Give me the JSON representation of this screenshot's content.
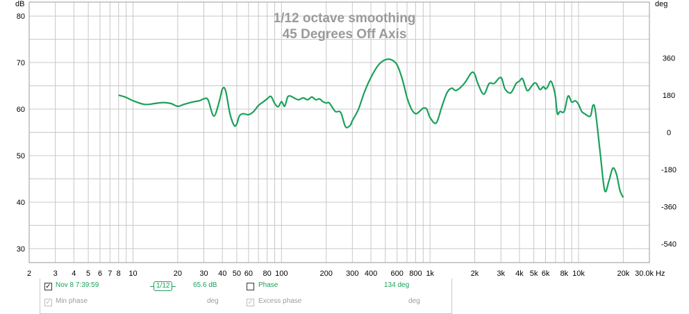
{
  "chart_data": {
    "type": "line",
    "title": "1/12 octave smoothing",
    "subtitle": "45 Degrees Off Axis",
    "ylabel": "dB",
    "y2label": "deg",
    "xunit": "Hz",
    "xscale": "log",
    "xlim": [
      2,
      30000
    ],
    "ylim": [
      27,
      83
    ],
    "y2lim": [
      -630,
      630
    ],
    "grid": true,
    "colors": {
      "series": "#1aa05a",
      "grid": "#c8c8c8",
      "title": "#9a9a9a"
    },
    "x_ticks": [
      {
        "v": 2,
        "label": "2"
      },
      {
        "v": 3,
        "label": "3"
      },
      {
        "v": 4,
        "label": "4"
      },
      {
        "v": 5,
        "label": "5"
      },
      {
        "v": 6,
        "label": "6"
      },
      {
        "v": 7,
        "label": "7"
      },
      {
        "v": 8,
        "label": "8"
      },
      {
        "v": 10,
        "label": "10"
      },
      {
        "v": 20,
        "label": "20"
      },
      {
        "v": 30,
        "label": "30"
      },
      {
        "v": 40,
        "label": "40"
      },
      {
        "v": 50,
        "label": "50"
      },
      {
        "v": 60,
        "label": "60"
      },
      {
        "v": 80,
        "label": "80"
      },
      {
        "v": 100,
        "label": "100"
      },
      {
        "v": 200,
        "label": "200"
      },
      {
        "v": 300,
        "label": "300"
      },
      {
        "v": 400,
        "label": "400"
      },
      {
        "v": 600,
        "label": "600"
      },
      {
        "v": 800,
        "label": "800"
      },
      {
        "v": 1000,
        "label": "1k"
      },
      {
        "v": 2000,
        "label": "2k"
      },
      {
        "v": 3000,
        "label": "3k"
      },
      {
        "v": 4000,
        "label": "4k"
      },
      {
        "v": 5000,
        "label": "5k"
      },
      {
        "v": 6000,
        "label": "6k"
      },
      {
        "v": 8000,
        "label": "8k"
      },
      {
        "v": 10000,
        "label": "10k"
      },
      {
        "v": 20000,
        "label": "20k"
      },
      {
        "v": 30000,
        "label": "30.0k"
      }
    ],
    "y_ticks": [
      {
        "v": 80,
        "label": "80"
      },
      {
        "v": 70,
        "label": "70"
      },
      {
        "v": 60,
        "label": "60"
      },
      {
        "v": 50,
        "label": "50"
      },
      {
        "v": 40,
        "label": "40"
      },
      {
        "v": 30,
        "label": "30"
      }
    ],
    "y2_ticks": [
      {
        "v": 360,
        "label": "360"
      },
      {
        "v": 180,
        "label": "180"
      },
      {
        "v": 0,
        "label": "0"
      },
      {
        "v": -180,
        "label": "-180"
      },
      {
        "v": -360,
        "label": "-360"
      },
      {
        "v": -540,
        "label": "-540"
      }
    ],
    "series": [
      {
        "name": "Nov 8 7:39:59",
        "x": [
          8,
          9,
          10,
          12,
          14,
          16,
          18,
          20,
          22,
          25,
          28,
          30,
          32,
          35,
          38,
          40,
          42,
          45,
          48,
          50,
          52,
          55,
          60,
          65,
          70,
          75,
          80,
          85,
          90,
          95,
          100,
          105,
          110,
          115,
          120,
          130,
          140,
          150,
          160,
          170,
          180,
          190,
          200,
          210,
          230,
          250,
          270,
          290,
          300,
          330,
          360,
          400,
          450,
          500,
          550,
          600,
          650,
          700,
          750,
          800,
          850,
          900,
          950,
          1000,
          1100,
          1200,
          1300,
          1400,
          1500,
          1700,
          1900,
          2000,
          2100,
          2300,
          2500,
          2700,
          3000,
          3200,
          3500,
          3800,
          4000,
          4200,
          4500,
          4800,
          5000,
          5200,
          5500,
          5800,
          6000,
          6200,
          6500,
          6800,
          7000,
          7200,
          7500,
          8000,
          8500,
          9000,
          9500,
          10000,
          10500,
          11000,
          12000,
          12500,
          13000,
          14000,
          15000,
          16000,
          17000,
          18000,
          19000,
          20000
        ],
        "values": [
          63,
          62.5,
          61.8,
          61,
          61.2,
          61.4,
          61.2,
          60.6,
          61,
          61.5,
          61.8,
          62.2,
          62,
          58.5,
          61.5,
          64.3,
          64,
          59,
          56.5,
          56.8,
          58.5,
          59,
          58.8,
          59.5,
          60.8,
          61.5,
          62.2,
          62.7,
          61.2,
          60.5,
          61.6,
          60.6,
          62.6,
          62.8,
          62.5,
          62,
          62.4,
          62,
          62.6,
          62,
          62.2,
          61.6,
          61.3,
          61.3,
          59.5,
          59.3,
          56.2,
          56.5,
          57.5,
          60,
          63.5,
          66.8,
          69.5,
          70.6,
          70.6,
          69.5,
          66.5,
          62.5,
          60,
          59,
          59.5,
          60.2,
          60,
          58.2,
          57,
          60.5,
          63.5,
          64.5,
          64,
          65.5,
          67.8,
          67.5,
          65.5,
          63.2,
          65.5,
          65.5,
          66.8,
          64.3,
          63.5,
          65.5,
          66,
          66.5,
          64,
          64.8,
          65.5,
          65.5,
          64.2,
          64.8,
          64.3,
          64.8,
          66,
          64.5,
          62.5,
          59,
          59.5,
          59.5,
          62.8,
          61.5,
          61.8,
          61,
          59.5,
          59,
          58.5,
          60.8,
          59.5,
          50.5,
          42.5,
          44.5,
          47.3,
          46,
          42.5,
          41
        ]
      }
    ]
  },
  "legend": {
    "row1": {
      "series_label": "Nov 8 7:39:59",
      "smoothing_label": "1/12",
      "value": "65.6 dB",
      "phase_label": "Phase",
      "phase_value": "134 deg"
    },
    "row2": {
      "min_phase_label": "Min phase",
      "min_phase_unit": "deg",
      "excess_phase_label": "Excess phase",
      "excess_phase_unit": "deg"
    }
  }
}
